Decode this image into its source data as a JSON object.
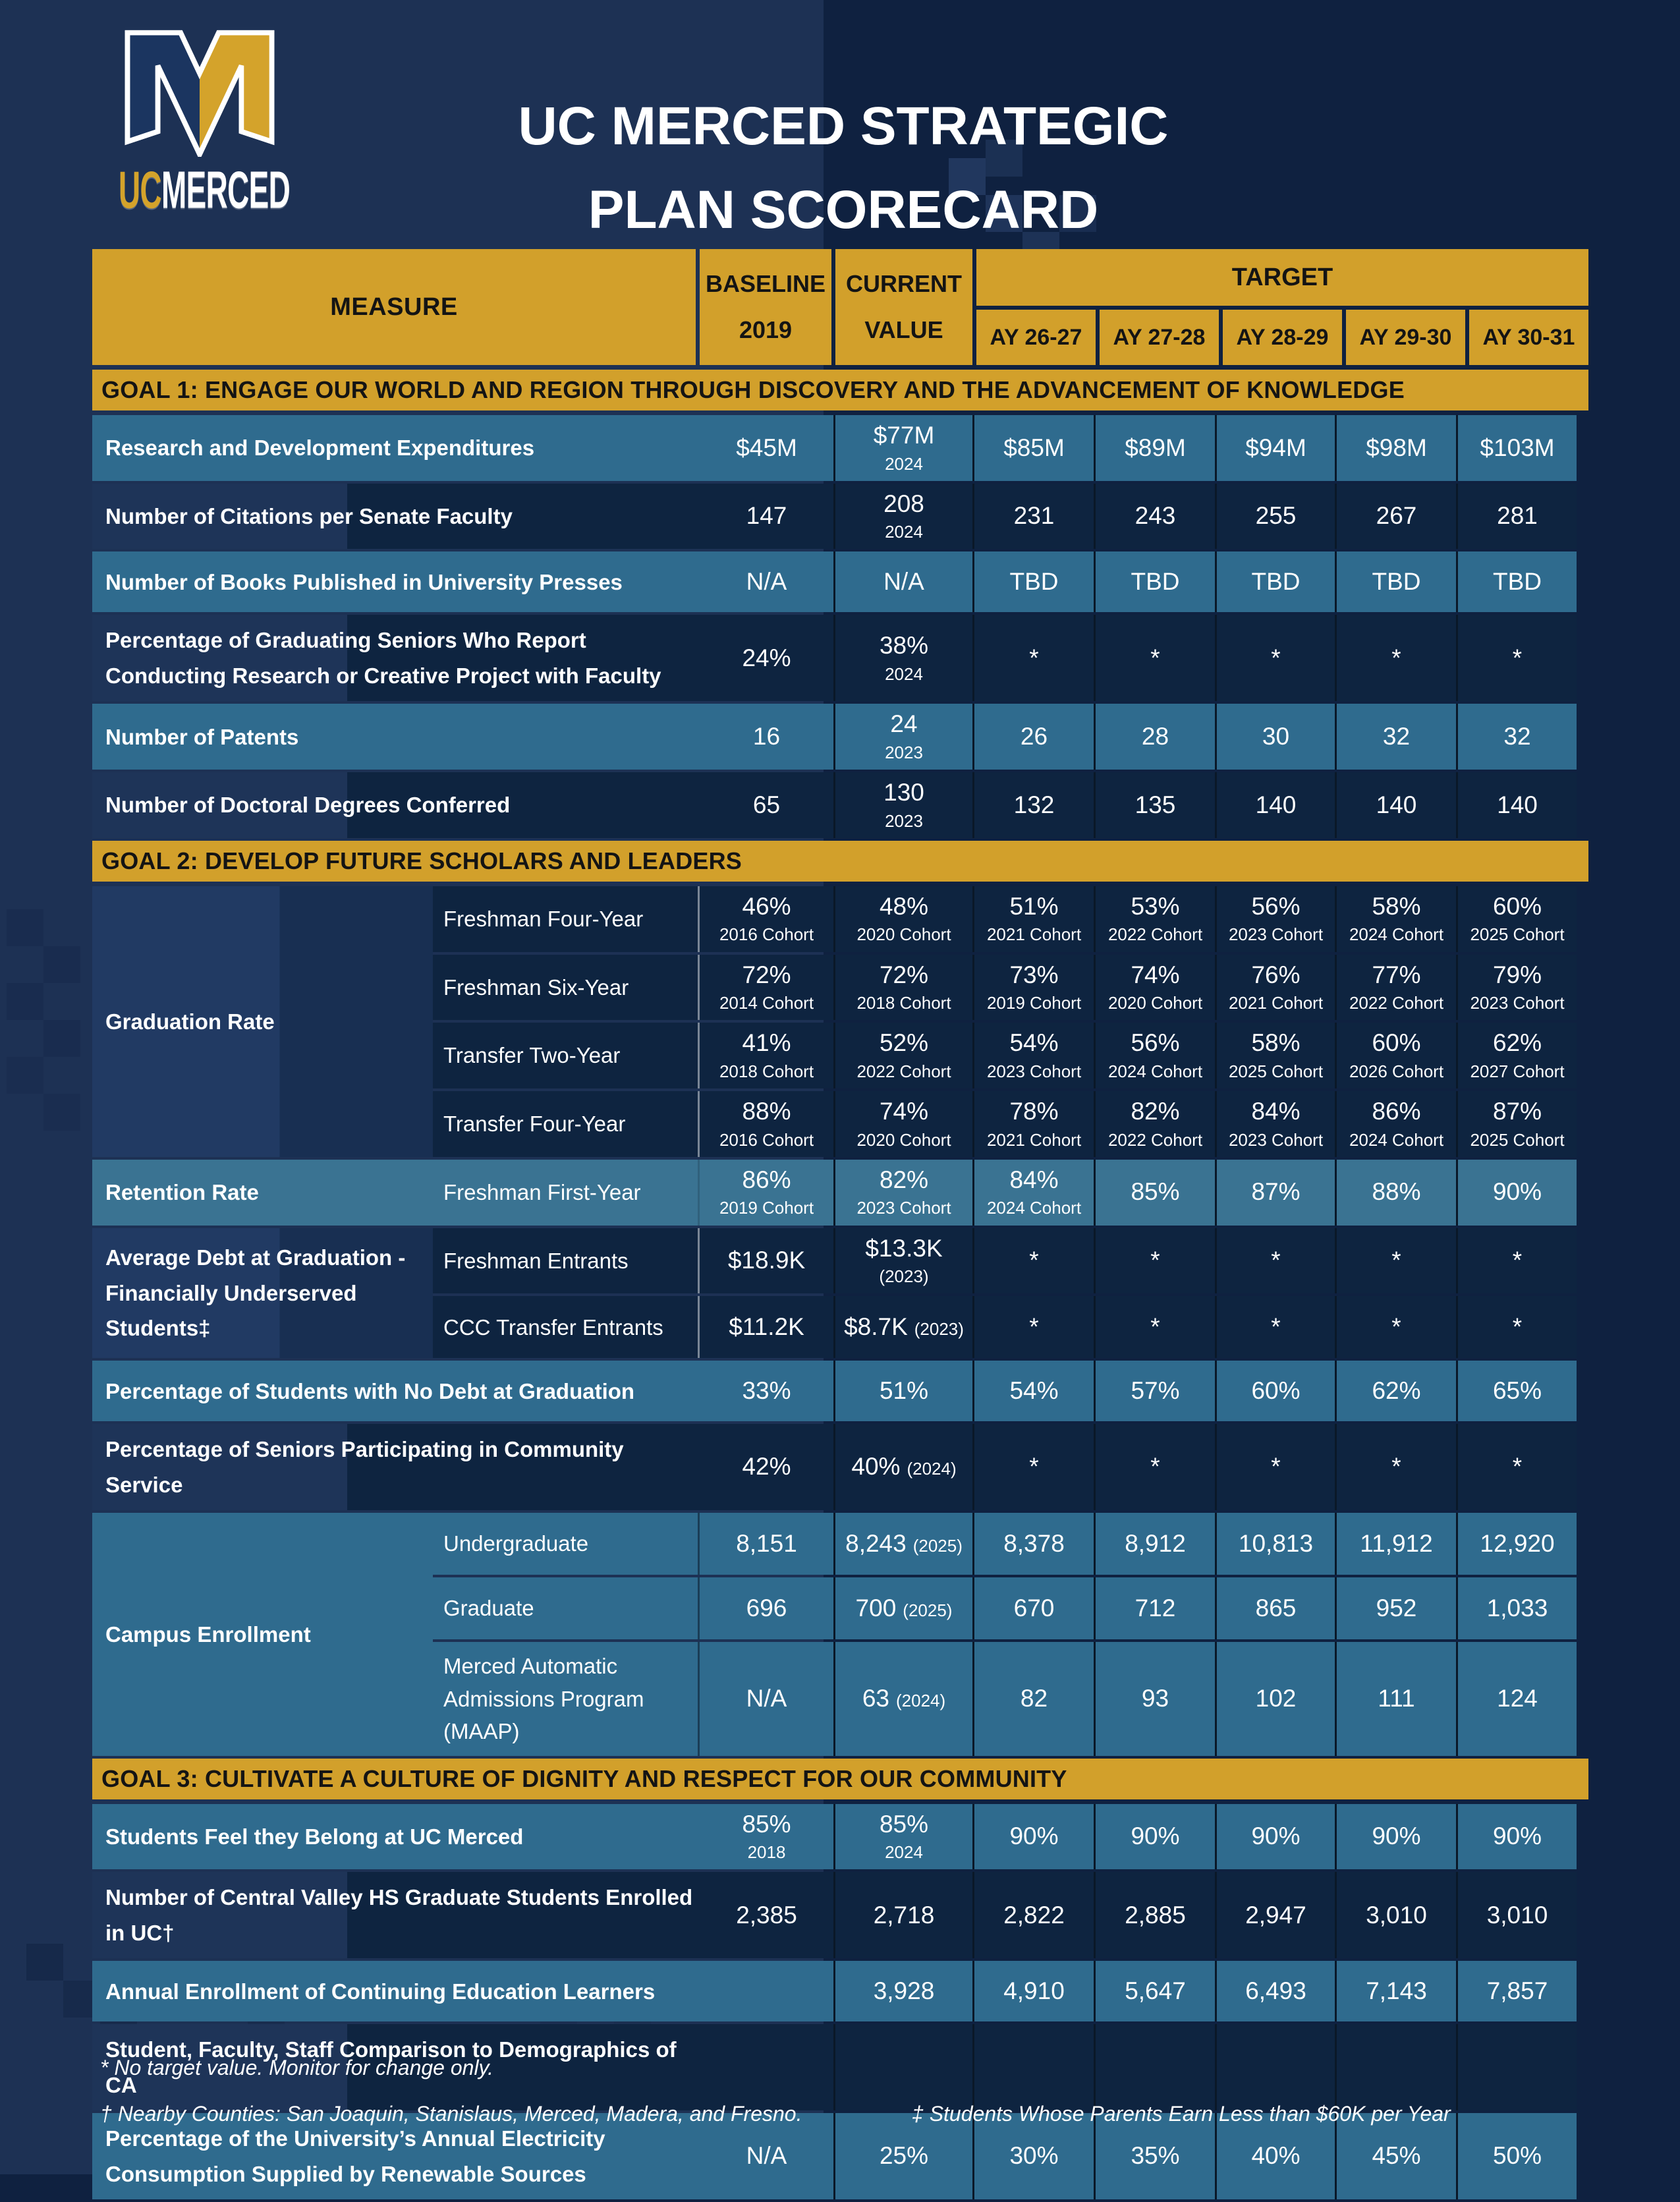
{
  "colors": {
    "gold": "#d2a02b",
    "teal_row": "#2f6b8e",
    "teal_light_row": "#3a7392",
    "navy_row": "#0e2440",
    "navy_group": "#213a63",
    "page_bg_left": "#1d3154",
    "page_bg_right": "#0f2140",
    "column_line": "#0a1828",
    "separator": "#ece9e2"
  },
  "logo": {
    "uc": "UC",
    "merced": "MERCED"
  },
  "title": {
    "line1": "UC MERCED STRATEGIC",
    "line2": "PLAN SCORECARD"
  },
  "table": {
    "header": {
      "measure": "MEASURE",
      "baseline_l1": "BASELINE",
      "baseline_l2": "2019",
      "current_l1": "CURRENT",
      "current_l2": "VALUE",
      "target": "TARGET",
      "ay": [
        "AY 26-27",
        "AY 27-28",
        "AY 28-29",
        "AY 29-30",
        "AY 30-31"
      ]
    },
    "sections": [
      {
        "goal": "GOAL 1: ENGAGE OUR WORLD AND REGION THROUGH DISCOVERY AND THE ADVANCEMENT OF KNOWLEDGE",
        "rows": [
          {
            "kind": "simple",
            "theme": "teal",
            "label": "Research and Development Expenditures",
            "cells": [
              {
                "v": "$45M"
              },
              {
                "v": "$77M",
                "n": "2024"
              },
              {
                "v": "$85M"
              },
              {
                "v": "$89M"
              },
              {
                "v": "$94M"
              },
              {
                "v": "$98M"
              },
              {
                "v": "$103M"
              }
            ]
          },
          {
            "kind": "simple",
            "theme": "navy",
            "label": "Number of Citations per Senate Faculty",
            "cells": [
              {
                "v": "147"
              },
              {
                "v": "208",
                "n": "2024"
              },
              {
                "v": "231"
              },
              {
                "v": "243"
              },
              {
                "v": "255"
              },
              {
                "v": "267"
              },
              {
                "v": "281"
              }
            ]
          },
          {
            "kind": "simple",
            "theme": "teal",
            "label": "Number of Books Published in University Presses",
            "cells": [
              {
                "v": "N/A"
              },
              {
                "v": "N/A"
              },
              {
                "v": "TBD"
              },
              {
                "v": "TBD"
              },
              {
                "v": "TBD"
              },
              {
                "v": "TBD"
              },
              {
                "v": "TBD"
              }
            ]
          },
          {
            "kind": "simple",
            "theme": "navy",
            "label": "Percentage of Graduating Seniors Who Report Conducting Research or Creative Project with Faculty",
            "cells": [
              {
                "v": "24%"
              },
              {
                "v": "38%",
                "n": "2024"
              },
              {
                "v": "*"
              },
              {
                "v": "*"
              },
              {
                "v": "*"
              },
              {
                "v": "*"
              },
              {
                "v": "*"
              }
            ]
          },
          {
            "kind": "simple",
            "theme": "teal",
            "label": "Number of Patents",
            "cells": [
              {
                "v": "16"
              },
              {
                "v": "24",
                "n": "2023"
              },
              {
                "v": "26"
              },
              {
                "v": "28"
              },
              {
                "v": "30"
              },
              {
                "v": "32"
              },
              {
                "v": "32"
              }
            ]
          },
          {
            "kind": "simple",
            "theme": "navy",
            "label": "Number of Doctoral Degrees Conferred",
            "cells": [
              {
                "v": "65"
              },
              {
                "v": "130",
                "n": "2023"
              },
              {
                "v": "132"
              },
              {
                "v": "135"
              },
              {
                "v": "140"
              },
              {
                "v": "140"
              },
              {
                "v": "140"
              }
            ]
          }
        ]
      },
      {
        "goal": "GOAL 2: DEVELOP FUTURE SCHOLARS AND LEADERS",
        "rows": [
          {
            "kind": "group",
            "theme": "navy",
            "label": "Graduation Rate",
            "subrows": [
              {
                "sub": "Freshman Four-Year",
                "cells": [
                  {
                    "v": "46%",
                    "n": "2016 Cohort"
                  },
                  {
                    "v": "48%",
                    "n": "2020 Cohort"
                  },
                  {
                    "v": "51%",
                    "n": "2021 Cohort"
                  },
                  {
                    "v": "53%",
                    "n": "2022 Cohort"
                  },
                  {
                    "v": "56%",
                    "n": "2023 Cohort"
                  },
                  {
                    "v": "58%",
                    "n": "2024 Cohort"
                  },
                  {
                    "v": "60%",
                    "n": "2025 Cohort"
                  }
                ]
              },
              {
                "sub": "Freshman Six-Year",
                "cells": [
                  {
                    "v": "72%",
                    "n": "2014 Cohort"
                  },
                  {
                    "v": "72%",
                    "n": "2018 Cohort"
                  },
                  {
                    "v": "73%",
                    "n": "2019 Cohort"
                  },
                  {
                    "v": "74%",
                    "n": "2020 Cohort"
                  },
                  {
                    "v": "76%",
                    "n": "2021 Cohort"
                  },
                  {
                    "v": "77%",
                    "n": "2022 Cohort"
                  },
                  {
                    "v": "79%",
                    "n": "2023 Cohort"
                  }
                ]
              },
              {
                "sub": "Transfer Two-Year",
                "cells": [
                  {
                    "v": "41%",
                    "n": "2018 Cohort"
                  },
                  {
                    "v": "52%",
                    "n": "2022 Cohort"
                  },
                  {
                    "v": "54%",
                    "n": "2023 Cohort"
                  },
                  {
                    "v": "56%",
                    "n": "2024 Cohort"
                  },
                  {
                    "v": "58%",
                    "n": "2025 Cohort"
                  },
                  {
                    "v": "60%",
                    "n": "2026 Cohort"
                  },
                  {
                    "v": "62%",
                    "n": "2027 Cohort"
                  }
                ]
              },
              {
                "sub": "Transfer Four-Year",
                "cells": [
                  {
                    "v": "88%",
                    "n": "2016 Cohort"
                  },
                  {
                    "v": "74%",
                    "n": "2020 Cohort"
                  },
                  {
                    "v": "78%",
                    "n": "2021 Cohort"
                  },
                  {
                    "v": "82%",
                    "n": "2022 Cohort"
                  },
                  {
                    "v": "84%",
                    "n": "2023 Cohort"
                  },
                  {
                    "v": "86%",
                    "n": "2024 Cohort"
                  },
                  {
                    "v": "87%",
                    "n": "2025 Cohort"
                  }
                ]
              }
            ]
          },
          {
            "kind": "group",
            "theme": "teal2",
            "label": "Retention Rate",
            "subrows": [
              {
                "sub": "Freshman First-Year",
                "cells": [
                  {
                    "v": "86%",
                    "n": "2019 Cohort"
                  },
                  {
                    "v": "82%",
                    "n": "2023 Cohort"
                  },
                  {
                    "v": "84%",
                    "n": "2024 Cohort"
                  },
                  {
                    "v": "85%"
                  },
                  {
                    "v": "87%"
                  },
                  {
                    "v": "88%"
                  },
                  {
                    "v": "90%"
                  }
                ]
              }
            ]
          },
          {
            "kind": "group",
            "theme": "navy",
            "label": "Average Debt at Graduation - Financially Underserved Students‡",
            "subrows": [
              {
                "sub": "Freshman Entrants",
                "cells": [
                  {
                    "v": "$18.9K"
                  },
                  {
                    "v": "$13.3K",
                    "n": "(2023)"
                  },
                  {
                    "v": "*"
                  },
                  {
                    "v": "*"
                  },
                  {
                    "v": "*"
                  },
                  {
                    "v": "*"
                  },
                  {
                    "v": "*"
                  }
                ]
              },
              {
                "sub": "CCC Transfer Entrants",
                "cells": [
                  {
                    "v": "$11.2K"
                  },
                  {
                    "v": "$8.7K",
                    "n": "(2023)",
                    "inline": true
                  },
                  {
                    "v": "*"
                  },
                  {
                    "v": "*"
                  },
                  {
                    "v": "*"
                  },
                  {
                    "v": "*"
                  },
                  {
                    "v": "*"
                  }
                ]
              }
            ]
          },
          {
            "kind": "simple",
            "theme": "teal",
            "label": "Percentage of Students with No Debt at Graduation",
            "cells": [
              {
                "v": "33%"
              },
              {
                "v": "51%"
              },
              {
                "v": "54%"
              },
              {
                "v": "57%"
              },
              {
                "v": "60%"
              },
              {
                "v": "62%"
              },
              {
                "v": "65%"
              }
            ]
          },
          {
            "kind": "simple",
            "theme": "navy",
            "label": "Percentage of Seniors Participating in Community Service",
            "cells": [
              {
                "v": "42%"
              },
              {
                "v": "40%",
                "n": "(2024)",
                "inline": true
              },
              {
                "v": "*"
              },
              {
                "v": "*"
              },
              {
                "v": "*"
              },
              {
                "v": "*"
              },
              {
                "v": "*"
              }
            ]
          },
          {
            "kind": "group",
            "theme": "teal",
            "label": "Campus Enrollment",
            "subrows": [
              {
                "sub": "Undergraduate",
                "cells": [
                  {
                    "v": "8,151"
                  },
                  {
                    "v": "8,243",
                    "n": "(2025)",
                    "inline": true
                  },
                  {
                    "v": "8,378"
                  },
                  {
                    "v": "8,912"
                  },
                  {
                    "v": "10,813"
                  },
                  {
                    "v": "11,912"
                  },
                  {
                    "v": "12,920"
                  }
                ]
              },
              {
                "sub": "Graduate",
                "cells": [
                  {
                    "v": "696"
                  },
                  {
                    "v": "700",
                    "n": "(2025)",
                    "inline": true
                  },
                  {
                    "v": "670"
                  },
                  {
                    "v": "712"
                  },
                  {
                    "v": "865"
                  },
                  {
                    "v": "952"
                  },
                  {
                    "v": "1,033"
                  }
                ]
              },
              {
                "sub": "Merced Automatic Admissions Program (MAAP)",
                "cells": [
                  {
                    "v": "N/A"
                  },
                  {
                    "v": "63",
                    "n": "(2024)",
                    "inline": true
                  },
                  {
                    "v": "82"
                  },
                  {
                    "v": "93"
                  },
                  {
                    "v": "102"
                  },
                  {
                    "v": "111"
                  },
                  {
                    "v": "124"
                  }
                ]
              }
            ]
          }
        ]
      },
      {
        "goal": "GOAL 3: CULTIVATE A CULTURE OF DIGNITY AND RESPECT FOR OUR COMMUNITY",
        "rows": [
          {
            "kind": "simple",
            "theme": "teal",
            "label": "Students Feel they Belong at UC Merced",
            "cells": [
              {
                "v": "85%",
                "n": "2018"
              },
              {
                "v": "85%",
                "n": "2024"
              },
              {
                "v": "90%"
              },
              {
                "v": "90%"
              },
              {
                "v": "90%"
              },
              {
                "v": "90%"
              },
              {
                "v": "90%"
              }
            ]
          },
          {
            "kind": "simple",
            "theme": "navy",
            "label": "Number of Central Valley HS Graduate Students Enrolled in UC†",
            "cells": [
              {
                "v": "2,385"
              },
              {
                "v": "2,718"
              },
              {
                "v": "2,822"
              },
              {
                "v": "2,885"
              },
              {
                "v": "2,947"
              },
              {
                "v": "3,010"
              },
              {
                "v": "3,010"
              }
            ]
          },
          {
            "kind": "simple",
            "theme": "teal",
            "label": "Annual Enrollment of Continuing Education Learners",
            "cells": [
              {},
              {
                "v": "3,928"
              },
              {
                "v": "4,910"
              },
              {
                "v": "5,647"
              },
              {
                "v": "6,493"
              },
              {
                "v": "7,143"
              },
              {
                "v": "7,857"
              }
            ]
          },
          {
            "kind": "simple",
            "theme": "navy",
            "label": "Student, Faculty, Staff Comparison to Demographics of CA",
            "cells": [
              {},
              {},
              {},
              {},
              {},
              {},
              {}
            ]
          },
          {
            "kind": "simple",
            "theme": "teal",
            "label": "Percentage of the University’s Annual Electricity Consumption Supplied by Renewable Sources",
            "cells": [
              {
                "v": "N/A"
              },
              {
                "v": "25%"
              },
              {
                "v": "30%"
              },
              {
                "v": "35%"
              },
              {
                "v": "40%"
              },
              {
                "v": "45%"
              },
              {
                "v": "50%"
              }
            ]
          }
        ]
      }
    ]
  },
  "footnotes": {
    "line1": "* No target value. Monitor for change only.",
    "line2a": "† Nearby Counties: San Joaquin, Stanislaus, Merced, Madera, and Fresno.",
    "line2b": "‡ Students Whose Parents Earn Less than $60K per Year"
  }
}
